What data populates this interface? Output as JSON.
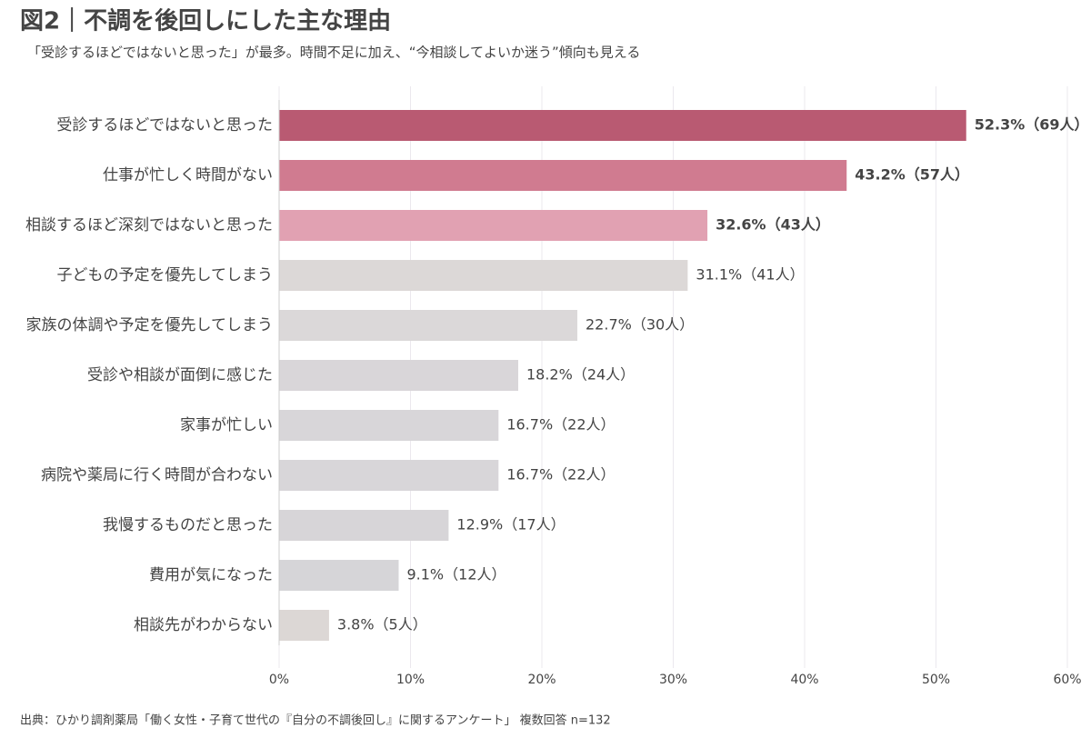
{
  "chart_data": {
    "type": "bar",
    "orientation": "horizontal",
    "title": "図2｜不調を後回しにした主な理由",
    "subtitle": "「受診するほどではないと思った」が最多。時間不足に加え、“今相談してよいか迷う”傾向も見える",
    "source": "出典：ひかり調剤薬局「働く女性・子育て世代の『自分の不調後回し』に関するアンケート」 複数回答 n=132",
    "categories": [
      "受診するほどではないと思った",
      "仕事が忙しく時間がない",
      "相談するほど深刻ではないと思った",
      "子どもの予定を優先してしまう",
      "家族の体調や予定を優先してしまう",
      "受診や相談が面倒に感じた",
      "家事が忙しい",
      "病院や薬局に行く時間が合わない",
      "我慢するものだと思った",
      "費用が気になった",
      "相談先がわからない"
    ],
    "values": [
      52.3,
      43.2,
      32.6,
      31.1,
      22.7,
      18.2,
      16.7,
      16.7,
      12.9,
      9.1,
      3.8
    ],
    "value_labels": [
      "52.3%（69人）",
      "43.2%（57人）",
      "32.6%（43人）",
      "31.1%（41人）",
      "22.7%（30人）",
      "18.2%（24人）",
      "16.7%（22人）",
      "16.7%（22人）",
      "12.9%（17人）",
      "9.1%（12人）",
      "3.8%（5人）"
    ],
    "colors": [
      "#b95a72",
      "#d07b90",
      "#e1a1b2",
      "#dcd8d7",
      "#dbd8d9",
      "#d9d6d9",
      "#d8d6d9",
      "#d8d6d9",
      "#d7d5d8",
      "#d6d5d8",
      "#dcd7d5"
    ],
    "highlighted": [
      true,
      true,
      true,
      false,
      false,
      false,
      false,
      false,
      false,
      false,
      false
    ],
    "xlim": [
      0,
      60
    ],
    "xticks": [
      {
        "value": 0,
        "label": "0%"
      },
      {
        "value": 10,
        "label": "10%"
      },
      {
        "value": 20,
        "label": "20%"
      },
      {
        "value": 30,
        "label": "30%"
      },
      {
        "value": 40,
        "label": "40%"
      },
      {
        "value": 50,
        "label": "50%"
      },
      {
        "value": 60,
        "label": "60%"
      }
    ],
    "grid": true
  }
}
